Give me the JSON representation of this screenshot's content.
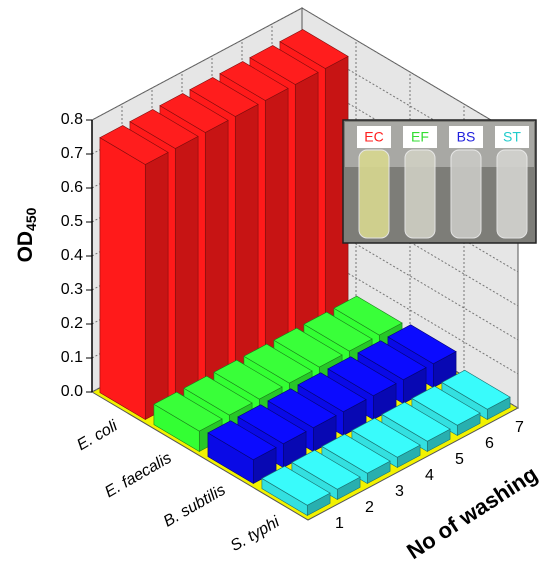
{
  "chart_data": {
    "type": "bar3d",
    "ylabel": "OD",
    "ylabel_subscript": "450",
    "xlabel": "No of washing",
    "x": [
      1,
      2,
      3,
      4,
      5,
      6,
      7
    ],
    "series": [
      {
        "name": "E. coli",
        "color": "#ff1a1a",
        "values": [
          0.75,
          0.75,
          0.75,
          0.75,
          0.75,
          0.75,
          0.75
        ]
      },
      {
        "name": "E. faecalis",
        "color": "#33ff33",
        "values": [
          0.06,
          0.06,
          0.06,
          0.06,
          0.06,
          0.06,
          0.06
        ]
      },
      {
        "name": "B. subtilis",
        "color": "#0a0ae6",
        "values": [
          0.07,
          0.07,
          0.07,
          0.07,
          0.07,
          0.07,
          0.07
        ]
      },
      {
        "name": "S. typhi",
        "color": "#33e0e0",
        "values": [
          0.03,
          0.03,
          0.03,
          0.03,
          0.03,
          0.03,
          0.03
        ]
      }
    ],
    "ylim": [
      0,
      0.8
    ],
    "yticks": [
      {
        "value": 0,
        "label": "0.0"
      },
      0.1,
      0.2,
      0.3,
      0.4,
      0.5,
      0.6,
      0.7,
      0.8
    ],
    "grid": true,
    "inset_labels": [
      {
        "text": "EC",
        "color": "#ff2020"
      },
      {
        "text": "EF",
        "color": "#33dd33"
      },
      {
        "text": "BS",
        "color": "#2020dd"
      },
      {
        "text": "ST",
        "color": "#22cccc"
      }
    ]
  }
}
